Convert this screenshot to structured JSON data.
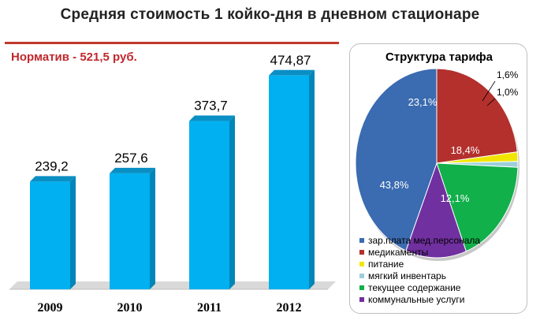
{
  "title": "Средняя стоимость 1 койко-дня в дневном стационаре",
  "norm_text": "Норматив - 521,5 руб.",
  "chart_data": [
    {
      "type": "bar",
      "categories": [
        "2009",
        "2010",
        "2011",
        "2012"
      ],
      "values": [
        239.2,
        257.6,
        373.7,
        474.87
      ],
      "value_labels": [
        "239,2",
        "257,6",
        "373,7",
        "474,87"
      ],
      "ylim": [
        0,
        520
      ],
      "bar_color": "#00b0f0",
      "grid": false
    },
    {
      "type": "pie",
      "title": "Структура тарифа",
      "legend_position": "bottom",
      "slices": [
        {
          "name": "зар.плата мед.персонала",
          "value": 43.8,
          "label": "43,8%",
          "color": "#3b6bb0"
        },
        {
          "name": "медикаменты",
          "value": 23.1,
          "label": "23,1%",
          "color": "#b3302d"
        },
        {
          "name": "питание",
          "value": 1.6,
          "label": "1,6%",
          "color": "#f2e600"
        },
        {
          "name": "мягкий инвентарь",
          "value": 1.0,
          "label": "1,0%",
          "color": "#9ccfdc"
        },
        {
          "name": "текущее содержание",
          "value": 18.4,
          "label": "18,4%",
          "color": "#11b04a"
        },
        {
          "name": "коммунальные услуги",
          "value": 12.1,
          "label": "12,1%",
          "color": "#7030a0"
        }
      ]
    }
  ]
}
